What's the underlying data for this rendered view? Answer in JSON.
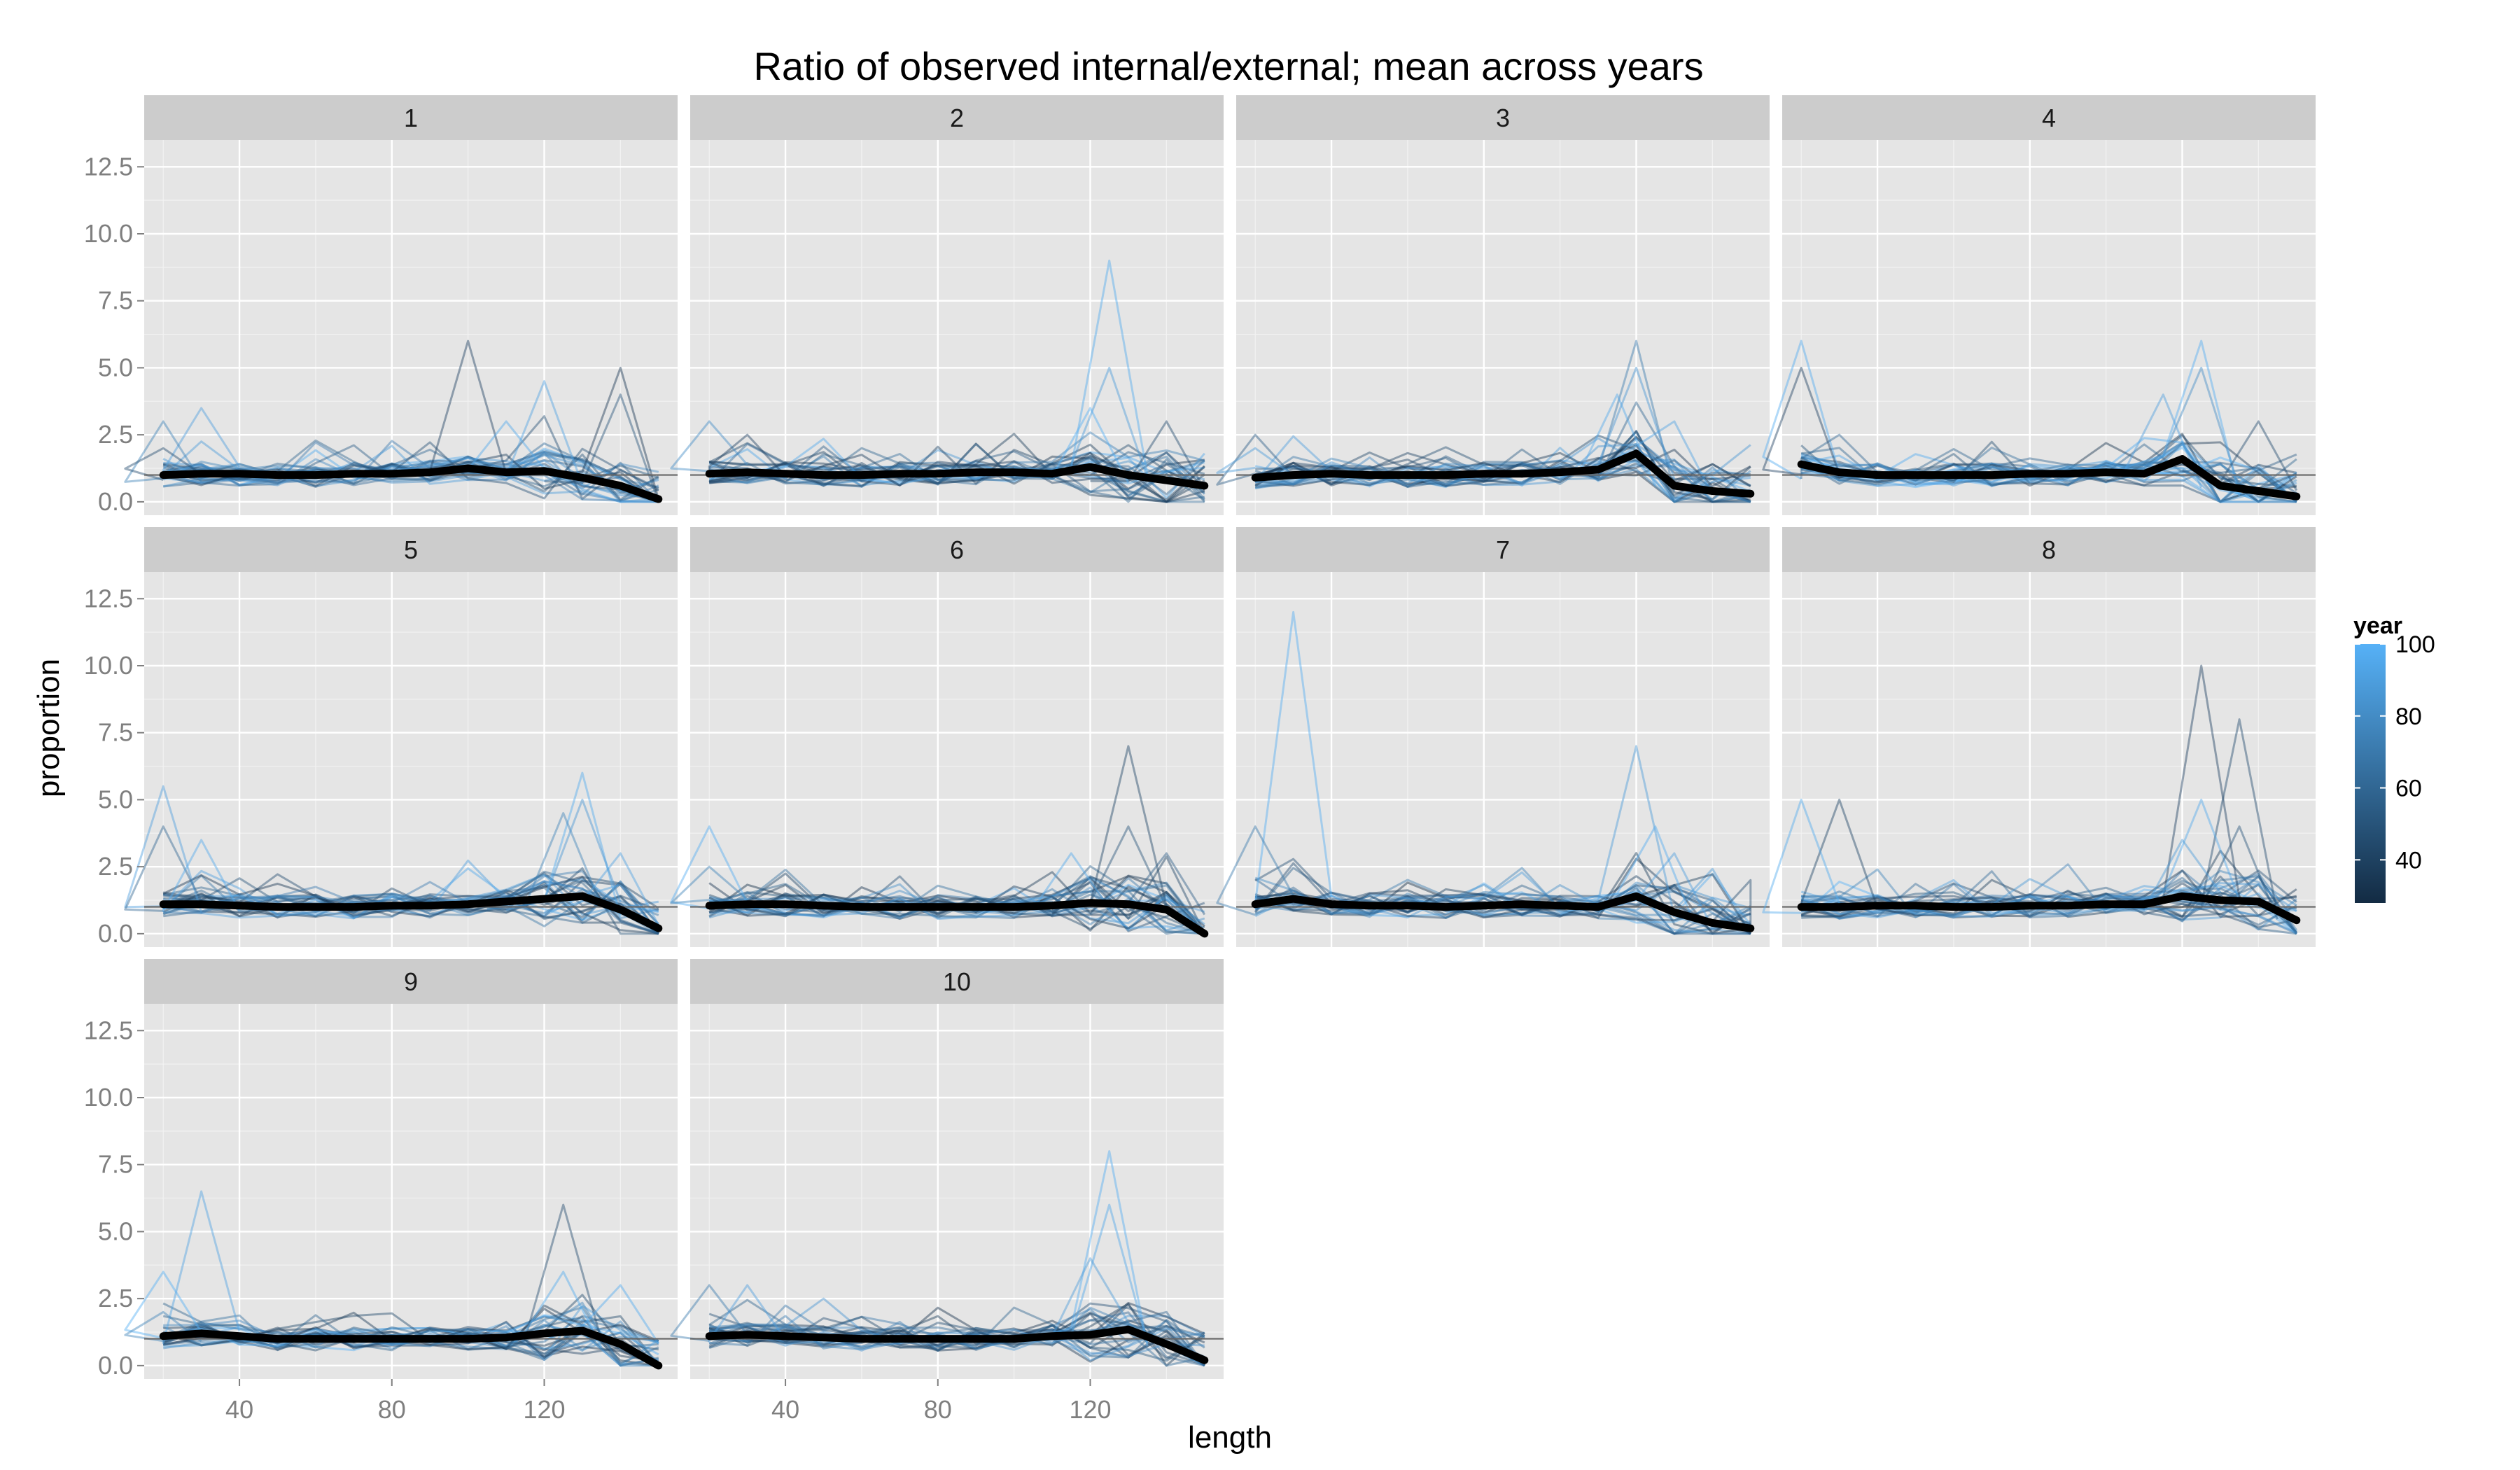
{
  "chart_data": {
    "type": "line",
    "title": "Ratio of observed internal/external; mean across years",
    "xlabel": "length",
    "ylabel": "proportion",
    "xlim": [
      15,
      155
    ],
    "ylim": [
      -0.5,
      13.5
    ],
    "x_ticks": [
      40,
      80,
      120
    ],
    "y_ticks": [
      0.0,
      2.5,
      5.0,
      7.5,
      10.0,
      12.5
    ],
    "y_tick_labels": [
      "0.0",
      "2.5",
      "5.0",
      "7.5",
      "10.0",
      "12.5"
    ],
    "reference_line": 1,
    "legend": {
      "title": "year",
      "placement": "right",
      "type": "colorbar",
      "range": [
        28,
        100
      ],
      "breaks": [
        40,
        60,
        80,
        100
      ],
      "low_color": "#132b43",
      "high_color": "#56b1f7"
    },
    "mean_line_color": "#000000",
    "panels": [
      {
        "label": "1",
        "mean": {
          "x": [
            20,
            30,
            40,
            50,
            60,
            70,
            80,
            90,
            100,
            110,
            120,
            130,
            140,
            150
          ],
          "y": [
            1.0,
            1.05,
            1.05,
            1.0,
            1.0,
            1.05,
            1.05,
            1.1,
            1.25,
            1.1,
            1.15,
            0.9,
            0.6,
            0.1
          ]
        },
        "peaks": [
          {
            "x": 100,
            "y": 6.0,
            "year": 40
          },
          {
            "x": 140,
            "y": 5.0,
            "year": 35
          },
          {
            "x": 120,
            "y": 4.5,
            "year": 92
          },
          {
            "x": 140,
            "y": 4.0,
            "year": 50
          },
          {
            "x": 30,
            "y": 3.5,
            "year": 90
          },
          {
            "x": 20,
            "y": 3.0,
            "year": 75
          },
          {
            "x": 20,
            "y": 2.0,
            "year": 45
          },
          {
            "x": 110,
            "y": 3.0,
            "year": 95
          }
        ]
      },
      {
        "label": "2",
        "mean": {
          "x": [
            20,
            30,
            40,
            50,
            60,
            70,
            80,
            90,
            100,
            110,
            120,
            130,
            140,
            150
          ],
          "y": [
            1.05,
            1.1,
            1.05,
            1.0,
            1.0,
            1.05,
            1.05,
            1.1,
            1.1,
            1.05,
            1.3,
            1.0,
            0.8,
            0.6
          ]
        },
        "peaks": [
          {
            "x": 125,
            "y": 9.0,
            "year": 96
          },
          {
            "x": 125,
            "y": 5.0,
            "year": 88
          },
          {
            "x": 140,
            "y": 3.0,
            "year": 45
          },
          {
            "x": 20,
            "y": 3.0,
            "year": 80
          },
          {
            "x": 30,
            "y": 2.5,
            "year": 40
          },
          {
            "x": 120,
            "y": 3.5,
            "year": 99
          }
        ]
      },
      {
        "label": "3",
        "mean": {
          "x": [
            20,
            30,
            40,
            50,
            60,
            70,
            80,
            90,
            100,
            110,
            120,
            130,
            140,
            150
          ],
          "y": [
            0.9,
            1.0,
            1.05,
            1.0,
            1.0,
            1.0,
            1.05,
            1.05,
            1.1,
            1.2,
            1.8,
            0.6,
            0.4,
            0.3
          ]
        },
        "peaks": [
          {
            "x": 120,
            "y": 6.0,
            "year": 70
          },
          {
            "x": 120,
            "y": 5.0,
            "year": 85
          },
          {
            "x": 115,
            "y": 4.0,
            "year": 95
          },
          {
            "x": 130,
            "y": 3.0,
            "year": 92
          },
          {
            "x": 20,
            "y": 2.5,
            "year": 55
          },
          {
            "x": 20,
            "y": 2.0,
            "year": 88
          }
        ]
      },
      {
        "label": "4",
        "mean": {
          "x": [
            20,
            30,
            40,
            50,
            60,
            70,
            80,
            90,
            100,
            110,
            120,
            130,
            140,
            150
          ],
          "y": [
            1.4,
            1.1,
            1.0,
            1.0,
            1.0,
            1.0,
            1.05,
            1.05,
            1.1,
            1.05,
            1.6,
            0.6,
            0.4,
            0.2
          ]
        },
        "peaks": [
          {
            "x": 20,
            "y": 6.0,
            "year": 97
          },
          {
            "x": 20,
            "y": 5.0,
            "year": 40
          },
          {
            "x": 125,
            "y": 6.0,
            "year": 98
          },
          {
            "x": 125,
            "y": 5.0,
            "year": 80
          },
          {
            "x": 115,
            "y": 4.0,
            "year": 90
          },
          {
            "x": 140,
            "y": 3.0,
            "year": 45
          },
          {
            "x": 30,
            "y": 2.5,
            "year": 60
          }
        ]
      },
      {
        "label": "5",
        "mean": {
          "x": [
            20,
            30,
            40,
            50,
            60,
            70,
            80,
            90,
            100,
            110,
            120,
            130,
            140,
            150
          ],
          "y": [
            1.1,
            1.1,
            1.05,
            1.0,
            1.0,
            1.0,
            1.05,
            1.05,
            1.1,
            1.2,
            1.3,
            1.4,
            0.9,
            0.2
          ]
        },
        "peaks": [
          {
            "x": 20,
            "y": 5.5,
            "year": 90
          },
          {
            "x": 20,
            "y": 4.0,
            "year": 60
          },
          {
            "x": 130,
            "y": 6.0,
            "year": 96
          },
          {
            "x": 125,
            "y": 4.5,
            "year": 75
          },
          {
            "x": 130,
            "y": 5.0,
            "year": 85
          },
          {
            "x": 140,
            "y": 3.0,
            "year": 92
          },
          {
            "x": 30,
            "y": 3.5,
            "year": 95
          }
        ]
      },
      {
        "label": "6",
        "mean": {
          "x": [
            20,
            30,
            40,
            50,
            60,
            70,
            80,
            90,
            100,
            110,
            120,
            130,
            140,
            150
          ],
          "y": [
            1.05,
            1.1,
            1.1,
            1.05,
            1.0,
            1.0,
            1.0,
            1.0,
            1.0,
            1.05,
            1.15,
            1.1,
            0.9,
            0.0
          ]
        },
        "peaks": [
          {
            "x": 130,
            "y": 7.0,
            "year": 42
          },
          {
            "x": 130,
            "y": 4.0,
            "year": 50
          },
          {
            "x": 140,
            "y": 3.0,
            "year": 55
          },
          {
            "x": 20,
            "y": 4.0,
            "year": 98
          },
          {
            "x": 20,
            "y": 2.5,
            "year": 75
          },
          {
            "x": 115,
            "y": 3.0,
            "year": 95
          }
        ]
      },
      {
        "label": "7",
        "mean": {
          "x": [
            20,
            30,
            40,
            50,
            60,
            70,
            80,
            90,
            100,
            110,
            120,
            130,
            140,
            150
          ],
          "y": [
            1.1,
            1.3,
            1.1,
            1.05,
            1.05,
            1.0,
            1.05,
            1.1,
            1.05,
            1.0,
            1.4,
            0.8,
            0.4,
            0.2
          ]
        },
        "peaks": [
          {
            "x": 30,
            "y": 12.0,
            "year": 98
          },
          {
            "x": 120,
            "y": 7.0,
            "year": 88
          },
          {
            "x": 125,
            "y": 4.0,
            "year": 97
          },
          {
            "x": 20,
            "y": 4.0,
            "year": 70
          },
          {
            "x": 130,
            "y": 3.0,
            "year": 90
          },
          {
            "x": 150,
            "y": 2.0,
            "year": 45
          }
        ]
      },
      {
        "label": "8",
        "mean": {
          "x": [
            20,
            30,
            40,
            50,
            60,
            70,
            80,
            90,
            100,
            110,
            120,
            130,
            140,
            150
          ],
          "y": [
            1.0,
            1.0,
            1.05,
            1.05,
            1.0,
            1.0,
            1.05,
            1.05,
            1.1,
            1.1,
            1.4,
            1.25,
            1.2,
            0.5
          ]
        },
        "peaks": [
          {
            "x": 125,
            "y": 10.0,
            "year": 40
          },
          {
            "x": 135,
            "y": 8.0,
            "year": 45
          },
          {
            "x": 30,
            "y": 5.0,
            "year": 42
          },
          {
            "x": 20,
            "y": 5.0,
            "year": 96
          },
          {
            "x": 125,
            "y": 5.0,
            "year": 95
          },
          {
            "x": 135,
            "y": 4.0,
            "year": 50
          },
          {
            "x": 120,
            "y": 3.5,
            "year": 88
          }
        ]
      },
      {
        "label": "9",
        "mean": {
          "x": [
            20,
            30,
            40,
            50,
            60,
            70,
            80,
            90,
            100,
            110,
            120,
            130,
            140,
            150
          ],
          "y": [
            1.1,
            1.2,
            1.1,
            1.0,
            1.0,
            1.0,
            1.0,
            1.0,
            1.0,
            1.05,
            1.2,
            1.3,
            0.8,
            0.0
          ]
        },
        "peaks": [
          {
            "x": 30,
            "y": 6.5,
            "year": 92
          },
          {
            "x": 125,
            "y": 6.0,
            "year": 45
          },
          {
            "x": 125,
            "y": 3.5,
            "year": 96
          },
          {
            "x": 20,
            "y": 3.5,
            "year": 99
          },
          {
            "x": 140,
            "y": 3.0,
            "year": 97
          },
          {
            "x": 20,
            "y": 2.0,
            "year": 75
          }
        ]
      },
      {
        "label": "10",
        "mean": {
          "x": [
            20,
            30,
            40,
            50,
            60,
            70,
            80,
            90,
            100,
            110,
            120,
            130,
            140,
            150
          ],
          "y": [
            1.1,
            1.15,
            1.1,
            1.05,
            1.0,
            1.0,
            1.0,
            1.0,
            1.0,
            1.1,
            1.15,
            1.35,
            0.8,
            0.2
          ]
        },
        "peaks": [
          {
            "x": 125,
            "y": 8.0,
            "year": 98
          },
          {
            "x": 125,
            "y": 6.0,
            "year": 94
          },
          {
            "x": 120,
            "y": 4.0,
            "year": 88
          },
          {
            "x": 20,
            "y": 3.0,
            "year": 70
          },
          {
            "x": 30,
            "y": 3.0,
            "year": 90
          },
          {
            "x": 140,
            "y": 2.0,
            "year": 60
          }
        ]
      }
    ]
  }
}
